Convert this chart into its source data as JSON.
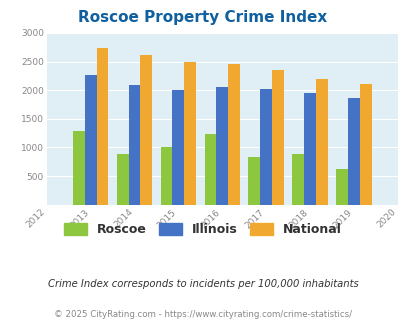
{
  "title": "Roscoe Property Crime Index",
  "years": [
    2013,
    2014,
    2015,
    2016,
    2017,
    2018,
    2019
  ],
  "roscoe": [
    1290,
    890,
    1000,
    1240,
    840,
    890,
    625
  ],
  "illinois": [
    2270,
    2090,
    2000,
    2055,
    2020,
    1950,
    1855
  ],
  "national": [
    2730,
    2610,
    2500,
    2460,
    2360,
    2190,
    2100
  ],
  "roscoe_color": "#8dc63f",
  "illinois_color": "#4472c4",
  "national_color": "#f0a830",
  "bg_color": "#e0eff5",
  "title_color": "#1060a0",
  "xlim": [
    2012,
    2020
  ],
  "ylim": [
    0,
    3000
  ],
  "yticks": [
    0,
    500,
    1000,
    1500,
    2000,
    2500,
    3000
  ],
  "xticks": [
    2012,
    2013,
    2014,
    2015,
    2016,
    2017,
    2018,
    2019,
    2020
  ],
  "legend_labels": [
    "Roscoe",
    "Illinois",
    "National"
  ],
  "footnote1": "Crime Index corresponds to incidents per 100,000 inhabitants",
  "footnote2": "© 2025 CityRating.com - https://www.cityrating.com/crime-statistics/",
  "bar_width": 0.27
}
